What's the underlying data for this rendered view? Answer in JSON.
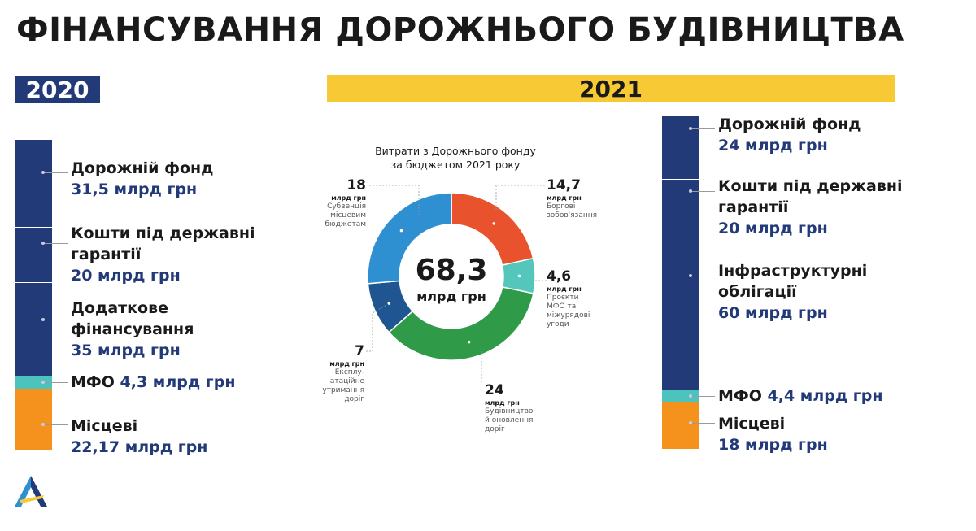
{
  "title": "ФІНАНСУВАННЯ ДОРОЖНЬОГО БУДІВНИЦТВА",
  "left_panel": {
    "year": "2020",
    "items": [
      {
        "name": "Дорожній фонд",
        "amount": "31,5 млрд грн",
        "value": 31.5,
        "color": "#223a78"
      },
      {
        "name_line1": "Кошти під державні",
        "name_line2": "гарантії",
        "amount": "20 млрд грн",
        "value": 20,
        "color": "#223a78"
      },
      {
        "name_line1": "Додаткове",
        "name_line2": "фінансування",
        "amount": "35 млрд грн",
        "value": 35,
        "color": "#223a78"
      },
      {
        "name": "МФО",
        "amount": "4,3 млрд грн",
        "value": 4.3,
        "color": "#4dc3bd"
      },
      {
        "name": "Місцеві",
        "amount": "22,17 млрд грн",
        "value": 22.17,
        "color": "#f5921e"
      }
    ]
  },
  "right_panel": {
    "year": "2021",
    "items": [
      {
        "name": "Дорожній фонд",
        "amount": "24 млрд грн",
        "value": 24,
        "color": "#223a78"
      },
      {
        "name_line1": "Кошти під державні",
        "name_line2": "гарантії",
        "amount": "20 млрд грн",
        "value": 20,
        "color": "#223a78"
      },
      {
        "name_line1": "Інфраструктурні",
        "name_line2": "облігації",
        "amount": "60 млрд грн",
        "value": 60,
        "color": "#223a78"
      },
      {
        "name": "МФО",
        "amount": "4,4 млрд грн",
        "value": 4.4,
        "color": "#4dc3bd"
      },
      {
        "name": "Місцеві",
        "amount": "18 млрд грн",
        "value": 18,
        "color": "#f5921e"
      }
    ]
  },
  "chart_data": {
    "type": "pie",
    "title_line1": "Витрати з Дорожнього фонду",
    "title_line2": "за бюджетом 2021 року",
    "total_value": "68,3",
    "total_unit": "млрд грн",
    "unit": "млрд грн",
    "slices": [
      {
        "value": 14.7,
        "label": "14,7",
        "desc": [
          "Боргові",
          "зобов'язання"
        ],
        "color": "#e8522c"
      },
      {
        "value": 4.6,
        "label": "4,6",
        "desc": [
          "Проєкти",
          "МФО та",
          "міжурядові",
          "угоди"
        ],
        "color": "#55c6bb"
      },
      {
        "value": 24,
        "label": "24",
        "desc": [
          "Будівництво",
          "й оновлення",
          "доріг"
        ],
        "color": "#2f9a47"
      },
      {
        "value": 7,
        "label": "7",
        "desc": [
          "Експлу-",
          "атаційне",
          "утримання",
          "доріг"
        ],
        "color": "#1f5591"
      },
      {
        "value": 18,
        "label": "18",
        "desc": [
          "Субвенція",
          "місцевим",
          "бюджетам"
        ],
        "color": "#2e8fd1"
      }
    ]
  },
  "logo": {
    "icon": "triangle-logo-icon",
    "colors": [
      "#223a78",
      "#f7c934",
      "#2e8fd1"
    ]
  }
}
